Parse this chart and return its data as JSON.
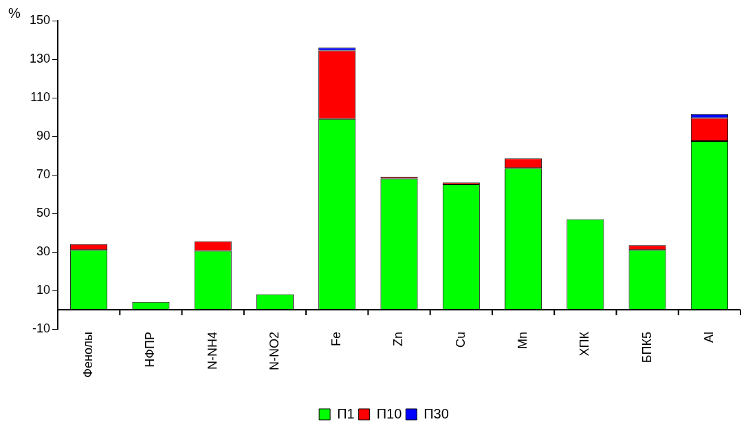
{
  "chart_data": {
    "type": "bar",
    "ylabel": "%",
    "stacked": true,
    "categories": [
      "Фенолы",
      "НФПР",
      "N-NH4",
      "N-NO2",
      "Fe",
      "Zn",
      "Cu",
      "Mn",
      "ХПК",
      "БПК5",
      "Al"
    ],
    "series": [
      {
        "name": "П1",
        "color": "#00ff00",
        "values": [
          31,
          4,
          30.5,
          8,
          99,
          68,
          65,
          73.5,
          47,
          31,
          87.5
        ]
      },
      {
        "name": "П10",
        "color": "#ff0000",
        "values": [
          3,
          null,
          5,
          null,
          35.5,
          1,
          1,
          5,
          null,
          2.5,
          12
        ]
      },
      {
        "name": "П30",
        "color": "#0000ff",
        "values": [
          null,
          null,
          null,
          null,
          1.5,
          null,
          null,
          null,
          null,
          null,
          2
        ]
      }
    ],
    "ylim": [
      -10,
      150
    ],
    "yticks": [
      -10,
      10,
      30,
      50,
      70,
      90,
      110,
      130,
      150
    ],
    "grid": false,
    "legend": "bottom"
  }
}
